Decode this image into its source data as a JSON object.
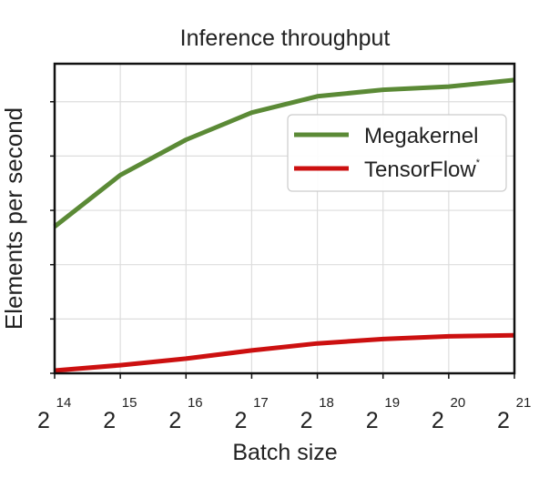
{
  "chart_data": {
    "type": "line",
    "title": "Inference throughput",
    "xlabel": "Batch size",
    "ylabel": "Elements per second",
    "x_scale": "log2",
    "x": [
      14,
      15,
      16,
      17,
      18,
      19,
      20,
      21
    ],
    "x_tick_base": "2",
    "x_tick_exponents": [
      "14",
      "15",
      "16",
      "17",
      "18",
      "19",
      "20",
      "21"
    ],
    "ylim": [
      0,
      5.7
    ],
    "y_tick_values": [
      0,
      1,
      2,
      3,
      4,
      5
    ],
    "grid": true,
    "legend_position": "upper-right",
    "series": [
      {
        "name": "Megakernel",
        "color": "#5b8a36",
        "values": [
          2.7,
          3.65,
          4.3,
          4.8,
          5.1,
          5.22,
          5.28,
          5.4
        ]
      },
      {
        "name": "TensorFlow",
        "name_suffix": "*",
        "color": "#cc1010",
        "values": [
          0.05,
          0.15,
          0.27,
          0.42,
          0.55,
          0.63,
          0.68,
          0.7
        ]
      }
    ]
  }
}
